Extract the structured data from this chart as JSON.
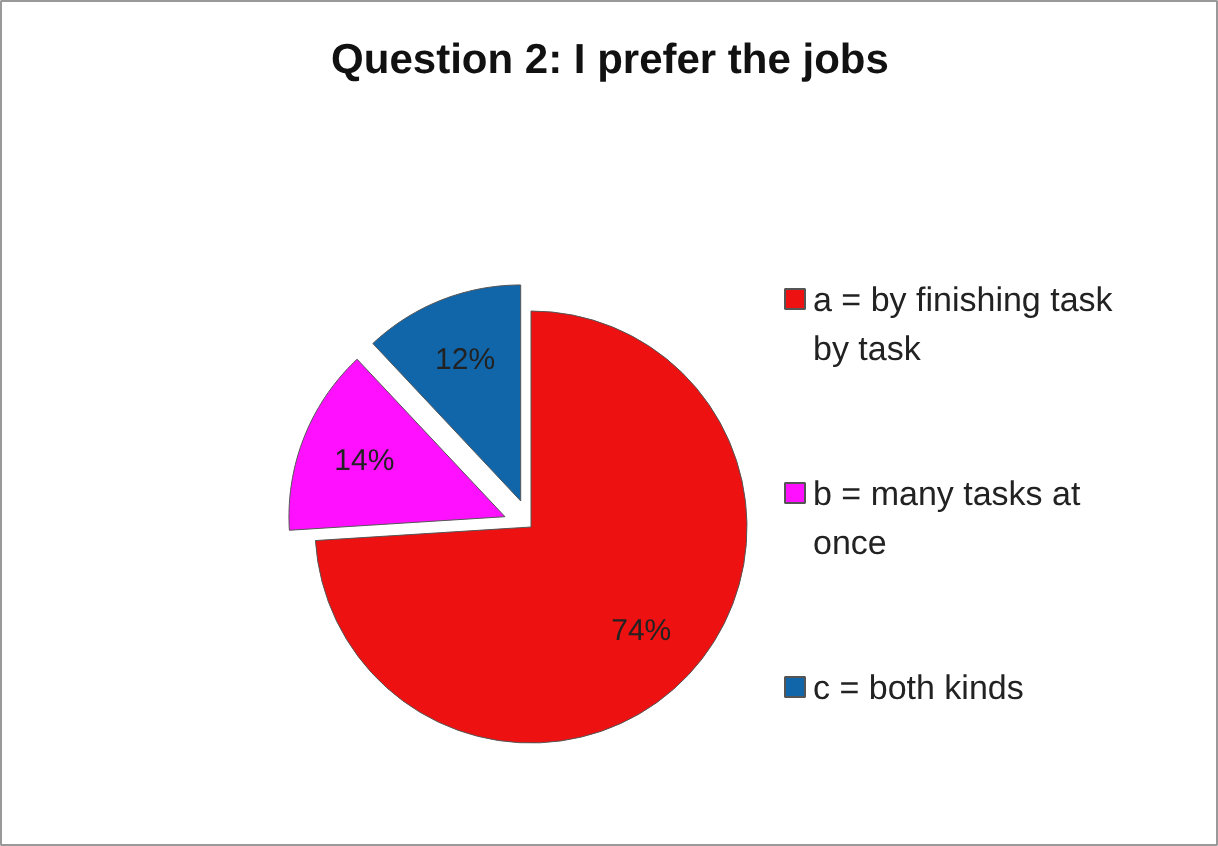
{
  "chart_data": {
    "type": "pie",
    "title": "Question 2: I prefer the jobs",
    "categories": [
      "a = by finishing task by task",
      "b = many tasks at once",
      "c = both kinds"
    ],
    "values": [
      74,
      14,
      12
    ],
    "colors": [
      "#ee1111",
      "#ff11ff",
      "#1166aa"
    ],
    "value_labels": [
      "74%",
      "14%",
      "12%"
    ],
    "legend": "right"
  }
}
